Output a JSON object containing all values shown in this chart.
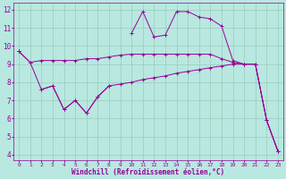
{
  "x": [
    0,
    1,
    2,
    3,
    4,
    5,
    6,
    7,
    8,
    9,
    10,
    11,
    12,
    13,
    14,
    15,
    16,
    17,
    18,
    19,
    20,
    21,
    22,
    23
  ],
  "line1_y": [
    9.7,
    9.1,
    9.2,
    9.2,
    9.2,
    9.2,
    9.3,
    9.3,
    9.4,
    9.5,
    9.55,
    9.55,
    9.55,
    9.55,
    9.55,
    9.55,
    9.55,
    9.55,
    9.3,
    9.1,
    9.0,
    9.0,
    5.9,
    4.2
  ],
  "line2_y": [
    9.7,
    9.1,
    7.6,
    7.8,
    6.5,
    7.0,
    6.3,
    7.2,
    7.8,
    7.9,
    8.0,
    8.15,
    8.25,
    8.35,
    8.5,
    8.6,
    8.7,
    8.8,
    8.9,
    9.0,
    9.0,
    9.0,
    5.9,
    4.2
  ],
  "line3_y": [
    null,
    null,
    null,
    null,
    7.0,
    null,
    6.5,
    7.8,
    7.8,
    null,
    10.7,
    11.9,
    10.5,
    10.6,
    11.9,
    11.9,
    11.6,
    11.5,
    11.1,
    null,
    null,
    null,
    null,
    null
  ],
  "line_jagged_y": [
    9.7,
    null,
    7.6,
    7.8,
    6.5,
    7.0,
    6.3,
    7.2,
    7.8,
    null,
    10.7,
    11.9,
    10.5,
    10.6,
    11.9,
    11.9,
    11.6,
    11.5,
    11.1,
    9.2,
    9.0,
    9.0,
    5.9,
    4.2
  ],
  "color": "#990099",
  "background": "#b8e8e0",
  "grid_color": "#99ccbb",
  "xlabel": "Windchill (Refroidissement éolien,°C)",
  "xlim": [
    -0.5,
    23.5
  ],
  "ylim": [
    3.7,
    12.4
  ],
  "yticks": [
    4,
    5,
    6,
    7,
    8,
    9,
    10,
    11,
    12
  ],
  "xticks": [
    0,
    1,
    2,
    3,
    4,
    5,
    6,
    7,
    8,
    9,
    10,
    11,
    12,
    13,
    14,
    15,
    16,
    17,
    18,
    19,
    20,
    21,
    22,
    23
  ]
}
